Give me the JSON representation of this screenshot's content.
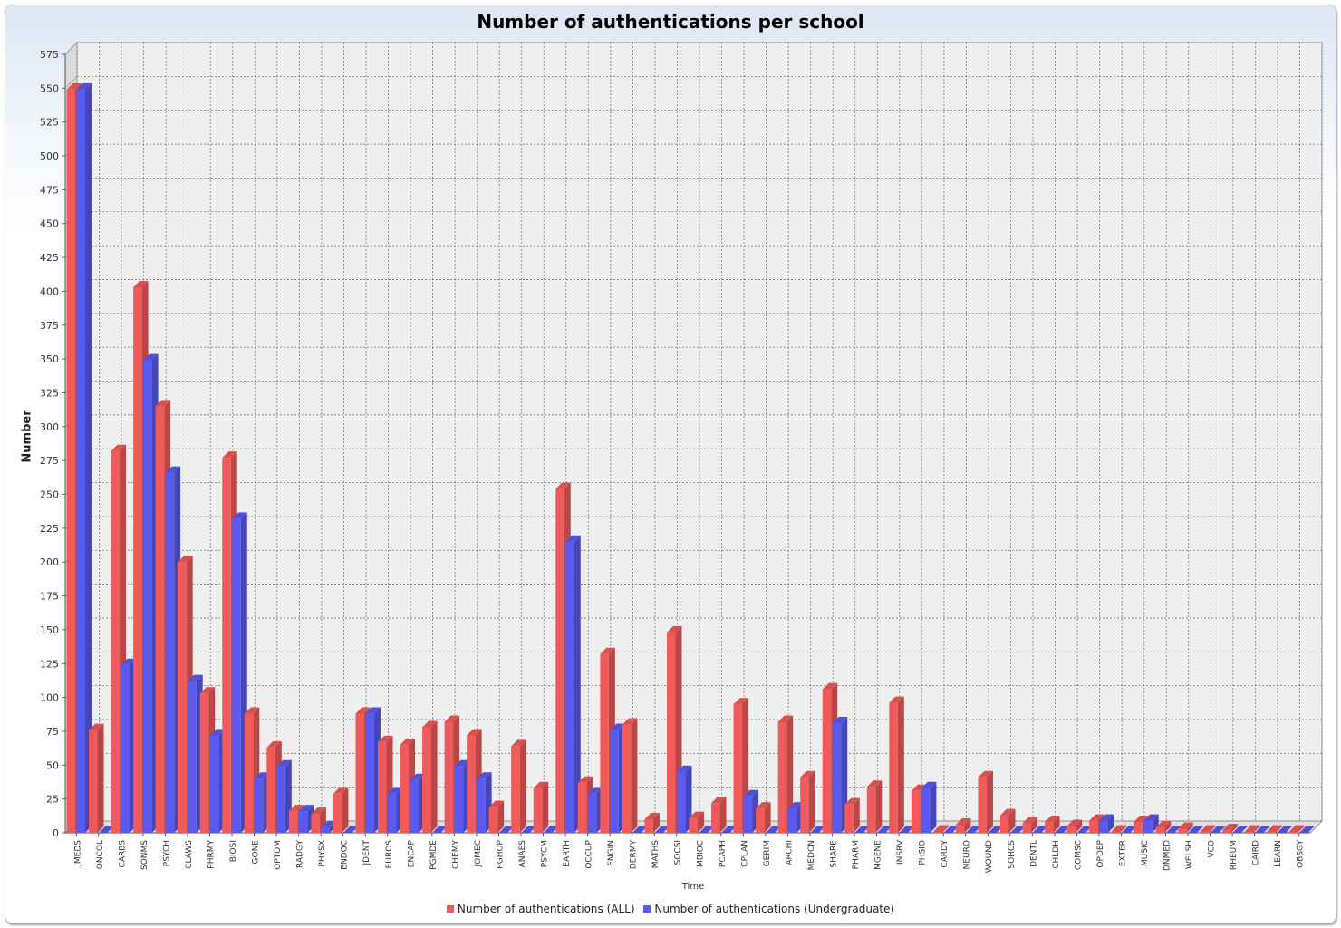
{
  "colors": {
    "all": "#f05a5a",
    "undergrad": "#5a5af0",
    "plot_bg": "#efefef"
  },
  "chart_data": {
    "type": "bar",
    "title": "Number of authentications per school",
    "xlabel": "Time",
    "ylabel": "Number",
    "ylim": [
      0,
      575
    ],
    "yticks": [
      0,
      25,
      50,
      75,
      100,
      125,
      150,
      175,
      200,
      225,
      250,
      275,
      300,
      325,
      350,
      375,
      400,
      425,
      450,
      475,
      500,
      525,
      550,
      575
    ],
    "grid": true,
    "legend_position": "bottom",
    "categories": [
      "JMEDS",
      "ONCOL",
      "CARBS",
      "SONMS",
      "PSYCH",
      "CLAWS",
      "PHRMY",
      "BIOSI",
      "GONE",
      "OPTOM",
      "RADGY",
      "PHYSX",
      "ENDOC",
      "JDENT",
      "EUROS",
      "ENCAP",
      "PGMDE",
      "CHEMY",
      "JOMEC",
      "PGHOP",
      "ANAES",
      "PSYCM",
      "EARTH",
      "OCCUP",
      "ENGIN",
      "DERMY",
      "MATHS",
      "SOCSI",
      "MBIOC",
      "PCAPH",
      "CPLAN",
      "GERIM",
      "ARCHI",
      "MEDCN",
      "SHARE",
      "PHARM",
      "MGENE",
      "INSRV",
      "PHSIO",
      "CARDY",
      "NEURO",
      "WOUND",
      "SOHCS",
      "DENTL",
      "CHLDH",
      "COMSC",
      "OPDEP",
      "EXTER",
      "MUSIC",
      "DNMED",
      "WELSH",
      "VCO",
      "RHEUM",
      "CAIRD",
      "LEARN",
      "OBSGY"
    ],
    "series": [
      {
        "name": "Number of authentications (ALL)",
        "values": [
          549,
          76,
          282,
          403,
          315,
          200,
          103,
          277,
          88,
          63,
          16,
          14,
          29,
          88,
          67,
          65,
          78,
          82,
          72,
          19,
          64,
          33,
          254,
          37,
          132,
          80,
          10,
          148,
          11,
          22,
          95,
          18,
          82,
          41,
          106,
          21,
          34,
          96,
          31,
          1,
          6,
          41,
          13,
          7,
          8,
          5,
          9,
          1,
          8,
          4,
          3,
          1,
          2,
          1,
          1,
          1
        ]
      },
      {
        "name": "Number of authentications (Undergraduate)",
        "values": [
          549,
          0,
          124,
          349,
          266,
          112,
          72,
          232,
          40,
          49,
          16,
          4,
          0,
          88,
          29,
          39,
          0,
          49,
          40,
          0,
          0,
          0,
          215,
          29,
          76,
          0,
          0,
          45,
          0,
          0,
          27,
          0,
          18,
          0,
          81,
          0,
          0,
          0,
          33,
          0,
          0,
          0,
          0,
          0,
          0,
          0,
          9,
          0,
          9,
          0,
          0,
          0,
          0,
          0,
          0,
          0
        ]
      }
    ]
  }
}
